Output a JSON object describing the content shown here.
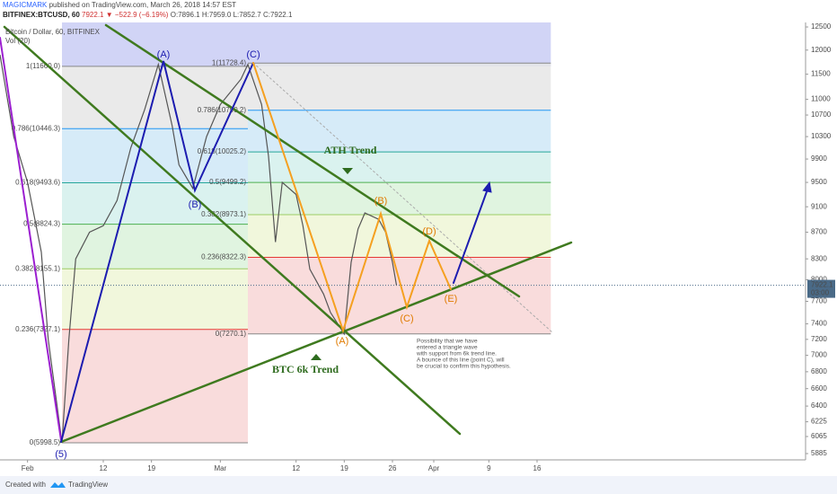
{
  "header": {
    "author": "MAGICMARK",
    "published": "published on TradingView.com, March 26, 2018 14:57 EST",
    "symbol": "BITFINEX:BTCUSD, 60",
    "last": "7922.1",
    "change": "▼ −522.9 (−6.19%)",
    "open": "O:7896.1",
    "high": "H:7959.0",
    "low": "L:7852.7",
    "close": "C:7922.1"
  },
  "footer": {
    "created": "Created with",
    "brand": "TradingView"
  },
  "annotations": [
    "(A)",
    "(B)",
    "(C)",
    "(5)",
    "(A)",
    "(B)",
    "(C)",
    "(D)",
    "(E)",
    "ATH Trend",
    "BTC 6k Trend"
  ],
  "note": [
    "Possibility that we have",
    "entered a triangle wave",
    "with support from 6k trend line.",
    "A bounce of this line (point C), will",
    "be crucial to confirm this hypothesis."
  ],
  "chart_data": {
    "type": "line",
    "title": "Bitcoin / Dollar, 60, BITFINEX",
    "volume_label": "Vol (20)",
    "log_scale": true,
    "x": [
      "2018-01-28",
      "2018-01-30",
      "2018-02-01",
      "2018-02-03",
      "2018-02-04",
      "2018-02-06",
      "2018-02-07",
      "2018-02-08",
      "2018-02-10",
      "2018-02-12",
      "2018-02-14",
      "2018-02-16",
      "2018-02-18",
      "2018-02-20",
      "2018-02-22",
      "2018-02-23",
      "2018-02-25",
      "2018-02-27",
      "2018-03-01",
      "2018-03-04",
      "2018-03-05",
      "2018-03-07",
      "2018-03-08",
      "2018-03-09",
      "2018-03-10",
      "2018-03-12",
      "2018-03-13",
      "2018-03-14",
      "2018-03-16",
      "2018-03-17",
      "2018-03-19",
      "2018-03-20",
      "2018-03-21",
      "2018-03-22",
      "2018-03-24",
      "2018-03-25",
      "2018-03-26T00:00",
      "2018-03-26T14:00"
    ],
    "series": [
      {
        "name": "BTCUSD",
        "color": "#555555",
        "values": [
          11900,
          10300,
          9500,
          8400,
          7200,
          6000,
          7200,
          8300,
          8700,
          8800,
          9200,
          10100,
          10800,
          11700,
          10500,
          9800,
          9400,
          10300,
          10900,
          11400,
          11700,
          10900,
          9950,
          8550,
          9500,
          9300,
          8800,
          8150,
          7800,
          7550,
          7270,
          8250,
          8750,
          9000,
          8900,
          8700,
          8250,
          7922.1
        ]
      }
    ],
    "last_price": 7922.1,
    "last_price_label": "7922.1",
    "countdown": "03:00",
    "xlim": [
      "2018-01-28",
      "2018-05-25"
    ],
    "xticks": [
      {
        "value": "2018-02-01",
        "label": "Feb"
      },
      {
        "value": "2018-02-12",
        "label": "12"
      },
      {
        "value": "2018-02-19",
        "label": "19"
      },
      {
        "value": "2018-03-01",
        "label": "Mar"
      },
      {
        "value": "2018-03-12",
        "label": "12"
      },
      {
        "value": "2018-03-19",
        "label": "19"
      },
      {
        "value": "2018-03-26",
        "label": "26"
      },
      {
        "value": "2018-04-01",
        "label": "Apr"
      },
      {
        "value": "2018-04-09",
        "label": "9"
      },
      {
        "value": "2018-04-16",
        "label": "16"
      }
    ],
    "ylim": [
      5820,
      12600
    ],
    "yticks": [
      5885,
      6065,
      6225,
      6400,
      6600,
      6800,
      7000,
      7200,
      7400,
      7700,
      8000,
      8300,
      8700,
      9100,
      9500,
      9900,
      10300,
      10700,
      11000,
      11500,
      12000,
      12500
    ],
    "fibs": [
      {
        "start": "2018-02-06",
        "end": "2018-03-05",
        "levels": [
          {
            "label": "1(11660.0)",
            "value": 11660.0,
            "color": "#888888"
          },
          {
            "label": "0.786(10446.3)",
            "value": 10446.3,
            "color": "#2196f3"
          },
          {
            "label": "0.618(9493.6)",
            "value": 9493.6,
            "color": "#26a69a"
          },
          {
            "label": "0.5(8824.3)",
            "value": 8824.3,
            "color": "#4caf50"
          },
          {
            "label": "0.382(8155.1)",
            "value": 8155.1,
            "color": "#9ccc65"
          },
          {
            "label": "0.236(7327.1)",
            "value": 7327.1,
            "color": "#e53935"
          },
          {
            "label": "0(5998.5)",
            "value": 5998.5,
            "color": "#888888"
          }
        ]
      },
      {
        "start": "2018-03-05",
        "end": "2018-04-18",
        "levels": [
          {
            "label": "1(11728.4)",
            "value": 11728.4,
            "color": "#888888"
          },
          {
            "label": "0.786(10790.2)",
            "value": 10790.2,
            "color": "#2196f3"
          },
          {
            "label": "0.618(10025.2)",
            "value": 10025.2,
            "color": "#26a69a"
          },
          {
            "label": "0.5(9499.2)",
            "value": 9499.2,
            "color": "#4caf50"
          },
          {
            "label": "0.382(8973.1)",
            "value": 8973.1,
            "color": "#9ccc65"
          },
          {
            "label": "0.236(8322.3)",
            "value": 8322.3,
            "color": "#e53935"
          },
          {
            "label": "0(7270.1)",
            "value": 7270.1,
            "color": "#888888"
          }
        ]
      }
    ]
  }
}
